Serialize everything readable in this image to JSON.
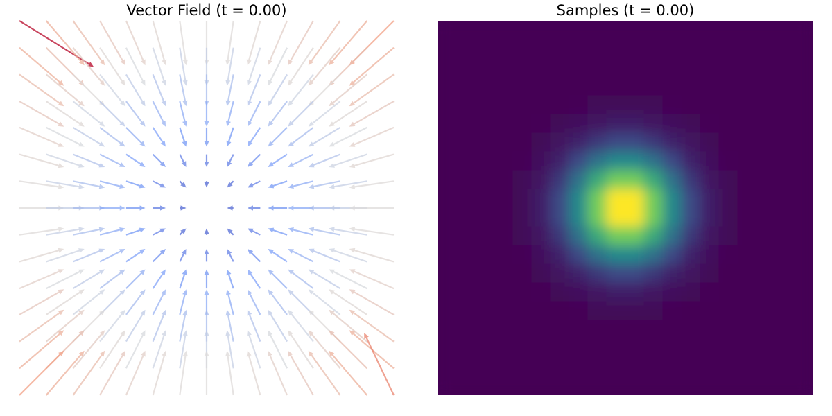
{
  "chart_data": [
    {
      "type": "quiver",
      "title": "Vector Field (t = 0.00)",
      "x": [
        -3,
        -2.57,
        -2.14,
        -1.71,
        -1.29,
        -0.86,
        -0.43,
        0,
        0.43,
        0.86,
        1.29,
        1.71,
        2.14,
        2.57,
        3
      ],
      "y": [
        3,
        2.57,
        2.14,
        1.71,
        1.29,
        0.86,
        0.43,
        0,
        -0.43,
        -0.86,
        -1.29,
        -1.71,
        -2.14,
        -2.57,
        -3
      ],
      "u": [
        [
          5,
          2.57,
          2.14,
          1.71,
          1.29,
          0.86,
          0.43,
          0,
          -0.43,
          -0.86,
          -1.29,
          -1.71,
          -2.14,
          -2.57,
          -3
        ],
        [
          3,
          2.57,
          2.14,
          1.71,
          1.29,
          0.86,
          0.43,
          0,
          -0.43,
          -0.86,
          -1.29,
          -1.71,
          -2.14,
          -2.57,
          -3
        ],
        [
          3,
          2.57,
          2.14,
          1.71,
          1.29,
          0.86,
          0.43,
          0,
          -0.43,
          -0.86,
          -1.29,
          -1.71,
          -2.14,
          -2.57,
          -3
        ],
        [
          3,
          2.57,
          2.14,
          1.71,
          1.29,
          0.86,
          0.43,
          0,
          -0.43,
          -0.86,
          -1.29,
          -1.71,
          -2.14,
          -2.57,
          -3
        ],
        [
          3,
          2.57,
          2.14,
          1.71,
          1.29,
          0.86,
          0.43,
          0,
          -0.43,
          -0.86,
          -1.29,
          -1.71,
          -2.14,
          -2.57,
          -3
        ],
        [
          3,
          2.57,
          2.14,
          1.71,
          1.29,
          0.86,
          0.43,
          0,
          -0.43,
          -0.86,
          -1.29,
          -1.71,
          -2.14,
          -2.57,
          -3
        ],
        [
          3,
          2.57,
          2.14,
          1.71,
          1.29,
          0.86,
          0.43,
          0,
          -0.43,
          -0.86,
          -1.29,
          -1.71,
          -2.14,
          -2.57,
          -3
        ],
        [
          3,
          2.57,
          2.14,
          1.71,
          1.29,
          0.86,
          0.43,
          0,
          -0.43,
          -0.86,
          -1.29,
          -1.71,
          -2.14,
          -2.57,
          -3
        ],
        [
          3,
          2.57,
          2.14,
          1.71,
          1.29,
          0.86,
          0.43,
          0,
          -0.43,
          -0.86,
          -1.29,
          -1.71,
          -2.14,
          -2.57,
          -3
        ],
        [
          3,
          2.57,
          2.14,
          1.71,
          1.29,
          0.86,
          0.43,
          0,
          -0.43,
          -0.86,
          -1.29,
          -1.71,
          -2.14,
          -2.57,
          -3
        ],
        [
          3,
          2.57,
          2.14,
          1.71,
          1.29,
          0.86,
          0.43,
          0,
          -0.43,
          -0.86,
          -1.29,
          -1.71,
          -2.14,
          -2.57,
          -3
        ],
        [
          3,
          2.57,
          2.14,
          1.71,
          1.29,
          0.86,
          0.43,
          0,
          -0.43,
          -0.86,
          -1.29,
          -1.71,
          -2.14,
          -2.57,
          -3
        ],
        [
          3,
          2.57,
          2.14,
          1.71,
          1.29,
          0.86,
          0.43,
          0,
          -0.43,
          -0.86,
          -1.29,
          -1.71,
          -2.14,
          -2.57,
          -3
        ],
        [
          3,
          2.57,
          2.14,
          1.71,
          1.29,
          0.86,
          0.43,
          0,
          -0.43,
          -0.86,
          -1.29,
          -1.71,
          -2.14,
          -2.57,
          -3
        ],
        [
          3,
          2.57,
          2.14,
          1.71,
          1.29,
          0.86,
          0.43,
          0,
          -0.43,
          -0.86,
          -1.29,
          -1.71,
          -2.14,
          -2.57,
          -2
        ]
      ],
      "v": [
        [
          -3.1,
          -3,
          -3,
          -3,
          -3,
          -3,
          -3,
          -3,
          -3,
          -3,
          -3,
          -3,
          -3,
          -3,
          -3
        ],
        [
          -2.57,
          -2.57,
          -2.57,
          -2.57,
          -2.57,
          -2.57,
          -2.57,
          -2.57,
          -2.57,
          -2.57,
          -2.57,
          -2.57,
          -2.57,
          -2.57,
          -2.57
        ],
        [
          -2.14,
          -2.14,
          -2.14,
          -2.14,
          -2.14,
          -2.14,
          -2.14,
          -2.14,
          -2.14,
          -2.14,
          -2.14,
          -2.14,
          -2.14,
          -2.14,
          -2.14
        ],
        [
          -1.71,
          -1.71,
          -1.71,
          -1.71,
          -1.71,
          -1.71,
          -1.71,
          -1.71,
          -1.71,
          -1.71,
          -1.71,
          -1.71,
          -1.71,
          -1.71,
          -1.71
        ],
        [
          -1.29,
          -1.29,
          -1.29,
          -1.29,
          -1.29,
          -1.29,
          -1.29,
          -1.29,
          -1.29,
          -1.29,
          -1.29,
          -1.29,
          -1.29,
          -1.29,
          -1.29
        ],
        [
          -0.86,
          -0.86,
          -0.86,
          -0.86,
          -0.86,
          -0.86,
          -0.86,
          -0.86,
          -0.86,
          -0.86,
          -0.86,
          -0.86,
          -0.86,
          -0.86,
          -0.86
        ],
        [
          -0.43,
          -0.43,
          -0.43,
          -0.43,
          -0.43,
          -0.43,
          -0.43,
          -0.43,
          -0.43,
          -0.43,
          -0.43,
          -0.43,
          -0.43,
          -0.43,
          -0.43
        ],
        [
          0,
          0,
          0,
          0,
          0,
          0,
          0,
          0,
          0,
          0,
          0,
          0,
          0,
          0,
          0
        ],
        [
          0.43,
          0.43,
          0.43,
          0.43,
          0.43,
          0.43,
          0.43,
          0.43,
          0.43,
          0.43,
          0.43,
          0.43,
          0.43,
          0.43,
          0.43
        ],
        [
          0.86,
          0.86,
          0.86,
          0.86,
          0.86,
          0.86,
          0.86,
          0.86,
          0.86,
          0.86,
          0.86,
          0.86,
          0.86,
          0.86,
          0.86
        ],
        [
          1.29,
          1.29,
          1.29,
          1.29,
          1.29,
          1.29,
          1.29,
          1.29,
          1.29,
          1.29,
          1.29,
          1.29,
          1.29,
          1.29,
          1.29
        ],
        [
          1.71,
          1.71,
          1.71,
          1.71,
          1.71,
          1.71,
          1.71,
          1.71,
          1.71,
          1.71,
          1.71,
          1.71,
          1.71,
          1.71,
          1.71
        ],
        [
          2.14,
          2.14,
          2.14,
          2.14,
          2.14,
          2.14,
          2.14,
          2.14,
          2.14,
          2.14,
          2.14,
          2.14,
          2.14,
          2.14,
          2.14
        ],
        [
          2.57,
          2.57,
          2.57,
          2.57,
          2.57,
          2.57,
          2.57,
          2.57,
          2.57,
          2.57,
          2.57,
          2.57,
          2.57,
          2.57,
          2.57
        ],
        [
          3,
          3,
          3,
          3,
          3,
          3,
          3,
          3,
          3,
          3,
          3,
          3,
          3,
          3,
          4.2
        ]
      ],
      "xlim": [
        -3,
        3
      ],
      "ylim": [
        -3,
        3
      ],
      "colormap": "coolwarm",
      "clim": [
        0,
        5.9
      ],
      "alpha": 0.75
    },
    {
      "type": "heatmap",
      "title": "Samples (t = 0.00)",
      "xlim": [
        -5,
        5
      ],
      "ylim": [
        -5,
        5
      ],
      "colormap": "viridis",
      "clim": [
        0,
        94
      ],
      "values": [
        [
          0,
          0,
          0,
          0,
          0,
          0,
          0,
          0,
          0,
          0,
          0,
          0,
          0,
          0,
          0,
          0,
          0,
          0,
          0,
          0
        ],
        [
          0,
          0,
          0,
          0,
          0,
          0,
          0,
          0,
          0,
          0,
          0,
          0,
          0,
          0,
          0,
          0,
          0,
          0,
          0,
          0
        ],
        [
          0,
          0,
          0,
          0,
          0,
          0,
          0,
          0,
          0,
          0,
          0,
          0,
          0,
          0,
          0,
          0,
          0,
          0,
          0,
          0
        ],
        [
          0,
          0,
          0,
          0,
          0,
          0,
          0,
          0,
          0,
          0,
          0,
          0,
          0,
          0,
          0,
          0,
          0,
          0,
          0,
          0
        ],
        [
          0,
          0,
          0,
          0,
          0,
          0,
          0,
          1,
          2,
          2,
          2,
          2,
          1,
          0,
          0,
          0,
          0,
          0,
          0,
          0
        ],
        [
          0,
          0,
          0,
          0,
          0,
          1,
          2,
          4,
          6,
          8,
          8,
          6,
          4,
          2,
          1,
          0,
          0,
          0,
          0,
          0
        ],
        [
          0,
          0,
          0,
          0,
          0,
          2,
          5,
          10,
          16,
          21,
          21,
          16,
          10,
          5,
          2,
          0,
          0,
          0,
          0,
          0
        ],
        [
          0,
          0,
          0,
          0,
          1,
          4,
          10,
          21,
          35,
          44,
          44,
          35,
          21,
          10,
          4,
          1,
          0,
          0,
          0,
          0
        ],
        [
          0,
          0,
          0,
          0,
          2,
          6,
          16,
          35,
          57,
          73,
          73,
          57,
          35,
          16,
          6,
          2,
          0,
          0,
          0,
          0
        ],
        [
          0,
          0,
          0,
          0,
          2,
          8,
          21,
          44,
          73,
          94,
          94,
          73,
          44,
          21,
          8,
          2,
          0,
          0,
          0,
          0
        ],
        [
          0,
          0,
          0,
          0,
          2,
          8,
          21,
          44,
          73,
          94,
          94,
          73,
          44,
          21,
          8,
          2,
          0,
          0,
          0,
          0
        ],
        [
          0,
          0,
          0,
          0,
          2,
          6,
          16,
          35,
          57,
          73,
          73,
          57,
          35,
          16,
          6,
          2,
          0,
          0,
          0,
          0
        ],
        [
          0,
          0,
          0,
          0,
          1,
          4,
          10,
          21,
          35,
          44,
          44,
          35,
          21,
          10,
          4,
          1,
          0,
          0,
          0,
          0
        ],
        [
          0,
          0,
          0,
          0,
          0,
          2,
          5,
          10,
          16,
          21,
          21,
          16,
          10,
          5,
          2,
          0,
          0,
          0,
          0,
          0
        ],
        [
          0,
          0,
          0,
          0,
          0,
          1,
          2,
          4,
          6,
          8,
          8,
          6,
          4,
          2,
          1,
          0,
          0,
          0,
          0,
          0
        ],
        [
          0,
          0,
          0,
          0,
          0,
          0,
          0,
          1,
          2,
          2,
          2,
          2,
          1,
          0,
          0,
          0,
          0,
          0,
          0,
          0
        ],
        [
          0,
          0,
          0,
          0,
          0,
          0,
          0,
          0,
          0,
          0,
          0,
          0,
          0,
          0,
          0,
          0,
          0,
          0,
          0,
          0
        ],
        [
          0,
          0,
          0,
          0,
          0,
          0,
          0,
          0,
          0,
          0,
          0,
          0,
          0,
          0,
          0,
          0,
          0,
          0,
          0,
          0
        ],
        [
          0,
          0,
          0,
          0,
          0,
          0,
          0,
          0,
          0,
          0,
          0,
          0,
          0,
          0,
          0,
          0,
          0,
          0,
          0,
          0
        ],
        [
          0,
          0,
          0,
          0,
          0,
          0,
          0,
          0,
          0,
          0,
          0,
          0,
          0,
          0,
          0,
          0,
          0,
          0,
          0,
          0
        ]
      ]
    }
  ]
}
